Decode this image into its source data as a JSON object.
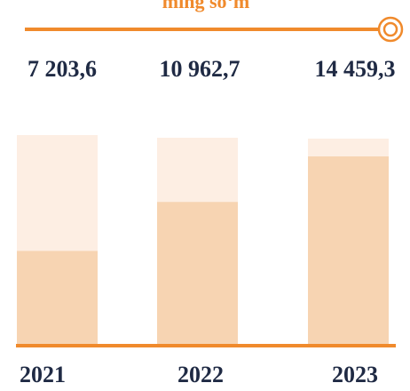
{
  "chart_data": {
    "type": "bar",
    "title": "ming so‘m",
    "categories": [
      "2021",
      "2022",
      "2023"
    ],
    "values": [
      7203.6,
      10962.7,
      14459.3
    ],
    "value_labels": [
      "7 203,6",
      "10 962,7",
      "14 459,3"
    ],
    "color": "#f7d4b2"
  }
}
